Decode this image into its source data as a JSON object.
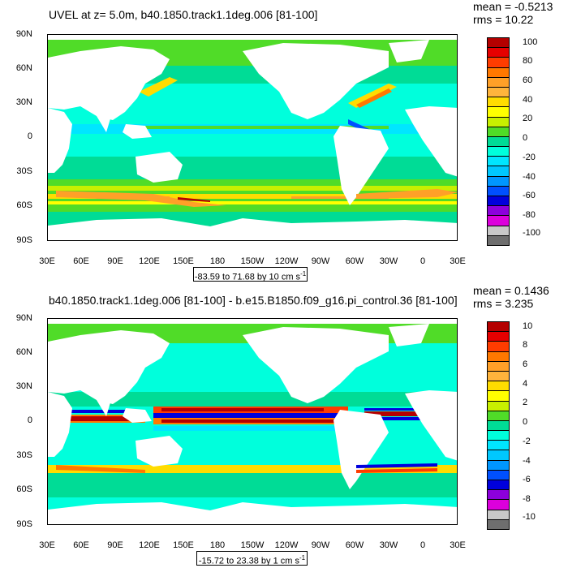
{
  "top": {
    "title": "UVEL at z=   5.0m, b40.1850.track1.1deg.006 [81-100]",
    "stats": {
      "mean": "mean = -0.5213",
      "rms": "rms = 10.22"
    },
    "range_label": "-83.59 to 71.68 by 10 cm s",
    "range_unit_exp": "-1",
    "colorbar_labels": [
      "100",
      "80",
      "60",
      "40",
      "20",
      "0",
      "-20",
      "-40",
      "-60",
      "-80",
      "-100"
    ]
  },
  "bottom": {
    "title": "b40.1850.track1.1deg.006 [81-100] - b.e15.B1850.f09_g16.pi_control.36 [81-100]",
    "stats": {
      "mean": "mean = 0.1436",
      "rms": "rms = 3.235"
    },
    "range_label": "-15.72 to 23.38 by 1 cm s",
    "range_unit_exp": "-1",
    "colorbar_labels": [
      "10",
      "8",
      "6",
      "4",
      "2",
      "0",
      "-2",
      "-4",
      "-6",
      "-8",
      "-10"
    ]
  },
  "lat_labels": [
    "90N",
    "60N",
    "30N",
    "0",
    "30S",
    "60S",
    "90S"
  ],
  "lon_labels": [
    "30E",
    "60E",
    "90E",
    "120E",
    "150E",
    "180",
    "150W",
    "120W",
    "90W",
    "60W",
    "30W",
    "0",
    "30E"
  ],
  "colormap": [
    "#b40000",
    "#e60000",
    "#ff3c00",
    "#ff7800",
    "#ffa028",
    "#ffb43c",
    "#ffdc00",
    "#ffff00",
    "#c8f000",
    "#50dc28",
    "#00dc96",
    "#00ffdc",
    "#00e6ff",
    "#00c8ff",
    "#0096ff",
    "#0050ff",
    "#0000dc",
    "#8c00dc",
    "#dc00dc",
    "#c8c8c8",
    "#6e6e6e"
  ]
}
